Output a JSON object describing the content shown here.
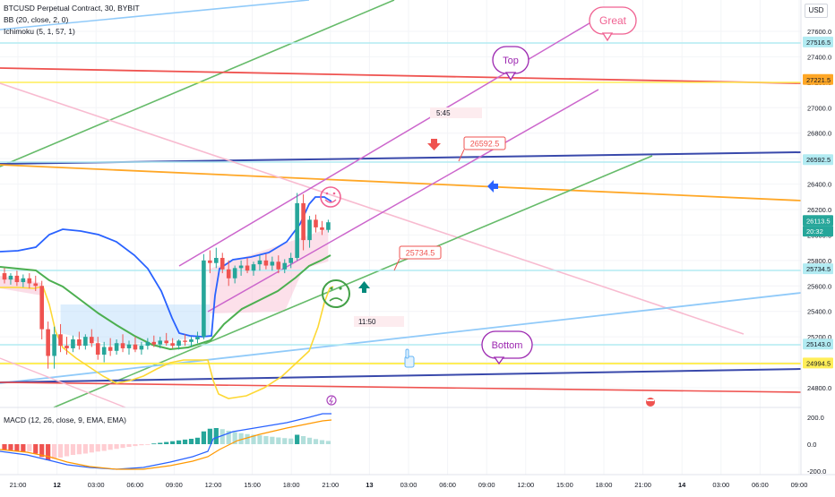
{
  "header": {
    "symbol": "BTCUSD Perpetual Contract, 30, BYBIT",
    "bb": "BB (20, close, 2, 0)",
    "ichimoku": "Ichimoku (5, 1, 57, 1)",
    "macd": "MACD (12, 26, close, 9, EMA, EMA)",
    "currency": "USD"
  },
  "colors": {
    "up": "#26a69a",
    "down": "#ef5350",
    "bb_upper": "#2962ff",
    "bb_middle": "#43a047",
    "bb_lower": "#fdd835",
    "purple": "#cc66cc",
    "green_line": "#66bb6a",
    "red_line": "#ef5350",
    "orange_line": "#ffa726",
    "navy_line": "#3949ab",
    "blue_line": "#90caf9",
    "yellow_line": "#ffee58",
    "pink_line": "#f8bbd0",
    "label_purple": "#9c27b0",
    "label_pink": "#f06292"
  },
  "chart_data": [
    {
      "type": "candlestick",
      "title": "BTCUSD Perpetual Contract, 30, BYBIT",
      "ylim": [
        24650,
        27750
      ],
      "y_ticks": [
        24800,
        25000,
        25200,
        25400,
        25600,
        25800,
        26000,
        26200,
        26400,
        26600,
        26800,
        27000,
        27200,
        27400,
        27600
      ],
      "x_ticks": [
        "21:00",
        "12",
        "03:00",
        "06:00",
        "09:00",
        "12:00",
        "15:00",
        "18:00",
        "21:00",
        "13",
        "03:00",
        "06:00",
        "09:00",
        "12:00",
        "15:00",
        "18:00",
        "21:00",
        "14",
        "03:00",
        "06:00",
        "09:00"
      ],
      "price_labels": [
        {
          "text": "27516.5",
          "value": 27516.5,
          "color": "#b2ebf2"
        },
        {
          "text": "27221.5",
          "value": 27221.5,
          "color": "#ffa726"
        },
        {
          "text": "26592.5",
          "value": 26592.5,
          "color": "#b2ebf2"
        },
        {
          "text": "26113.5",
          "value": 26113.5,
          "color": "#26a69a"
        },
        {
          "text": "20:32",
          "value": 26030,
          "color": "#26a69a"
        },
        {
          "text": "25734.5",
          "value": 25734.5,
          "color": "#b2ebf2"
        },
        {
          "text": "25143.0",
          "value": 25143,
          "color": "#b2ebf2"
        },
        {
          "text": "24994.5",
          "value": 24994.5,
          "color": "#ffee58"
        }
      ],
      "annotations": [
        "Great",
        "Top",
        "Bottom",
        "26592.5",
        "25734.5",
        "5:45",
        "11:50"
      ],
      "candles": [
        {
          "o": 25700,
          "h": 25740,
          "l": 25620,
          "c": 25650
        },
        {
          "o": 25650,
          "h": 25700,
          "l": 25610,
          "c": 25680
        },
        {
          "o": 25680,
          "h": 25720,
          "l": 25600,
          "c": 25630
        },
        {
          "o": 25630,
          "h": 25690,
          "l": 25590,
          "c": 25660
        },
        {
          "o": 25660,
          "h": 25700,
          "l": 25580,
          "c": 25620
        },
        {
          "o": 25620,
          "h": 25680,
          "l": 25560,
          "c": 25600
        },
        {
          "o": 25600,
          "h": 25640,
          "l": 25180,
          "c": 25260
        },
        {
          "o": 25260,
          "h": 25320,
          "l": 24950,
          "c": 25050
        },
        {
          "o": 25050,
          "h": 25280,
          "l": 24950,
          "c": 25220
        },
        {
          "o": 25220,
          "h": 25300,
          "l": 25080,
          "c": 25130
        },
        {
          "o": 25130,
          "h": 25200,
          "l": 25060,
          "c": 25110
        },
        {
          "o": 25110,
          "h": 25210,
          "l": 25080,
          "c": 25180
        },
        {
          "o": 25180,
          "h": 25240,
          "l": 25100,
          "c": 25130
        },
        {
          "o": 25130,
          "h": 25220,
          "l": 25100,
          "c": 25200
        },
        {
          "o": 25200,
          "h": 25260,
          "l": 25120,
          "c": 25150
        },
        {
          "o": 25150,
          "h": 25200,
          "l": 25020,
          "c": 25060
        },
        {
          "o": 25060,
          "h": 25160,
          "l": 25000,
          "c": 25120
        },
        {
          "o": 25120,
          "h": 25190,
          "l": 25050,
          "c": 25090
        },
        {
          "o": 25090,
          "h": 25180,
          "l": 25060,
          "c": 25150
        },
        {
          "o": 25150,
          "h": 25220,
          "l": 25080,
          "c": 25110
        },
        {
          "o": 25110,
          "h": 25170,
          "l": 25060,
          "c": 25140
        },
        {
          "o": 25140,
          "h": 25200,
          "l": 25080,
          "c": 25100
        },
        {
          "o": 25100,
          "h": 25160,
          "l": 25060,
          "c": 25130
        },
        {
          "o": 25130,
          "h": 25190,
          "l": 25100,
          "c": 25160
        },
        {
          "o": 25160,
          "h": 25210,
          "l": 25120,
          "c": 25140
        },
        {
          "o": 25140,
          "h": 25200,
          "l": 25110,
          "c": 25170
        },
        {
          "o": 25170,
          "h": 25230,
          "l": 25130,
          "c": 25150
        },
        {
          "o": 25150,
          "h": 25190,
          "l": 25110,
          "c": 25130
        },
        {
          "o": 25130,
          "h": 25180,
          "l": 25100,
          "c": 25170
        },
        {
          "o": 25170,
          "h": 25220,
          "l": 25130,
          "c": 25160
        },
        {
          "o": 25160,
          "h": 25200,
          "l": 25120,
          "c": 25180
        },
        {
          "o": 25180,
          "h": 25240,
          "l": 25150,
          "c": 25200
        },
        {
          "o": 25200,
          "h": 25850,
          "l": 25180,
          "c": 25800
        },
        {
          "o": 25800,
          "h": 25880,
          "l": 25700,
          "c": 25780
        },
        {
          "o": 25780,
          "h": 25900,
          "l": 25740,
          "c": 25820
        },
        {
          "o": 25820,
          "h": 25860,
          "l": 25700,
          "c": 25730
        },
        {
          "o": 25730,
          "h": 25800,
          "l": 25600,
          "c": 25660
        },
        {
          "o": 25660,
          "h": 25760,
          "l": 25620,
          "c": 25740
        },
        {
          "o": 25740,
          "h": 25800,
          "l": 25680,
          "c": 25760
        },
        {
          "o": 25760,
          "h": 25820,
          "l": 25700,
          "c": 25720
        },
        {
          "o": 25720,
          "h": 25790,
          "l": 25680,
          "c": 25770
        },
        {
          "o": 25770,
          "h": 25840,
          "l": 25720,
          "c": 25800
        },
        {
          "o": 25800,
          "h": 25850,
          "l": 25730,
          "c": 25760
        },
        {
          "o": 25760,
          "h": 25830,
          "l": 25720,
          "c": 25790
        },
        {
          "o": 25790,
          "h": 25840,
          "l": 25700,
          "c": 25730
        },
        {
          "o": 25730,
          "h": 25810,
          "l": 25700,
          "c": 25780
        },
        {
          "o": 25780,
          "h": 25860,
          "l": 25740,
          "c": 25820
        },
        {
          "o": 25820,
          "h": 26330,
          "l": 25800,
          "c": 26250
        },
        {
          "o": 26250,
          "h": 26320,
          "l": 25880,
          "c": 25960
        },
        {
          "o": 25960,
          "h": 26150,
          "l": 25900,
          "c": 26120
        },
        {
          "o": 26120,
          "h": 26160,
          "l": 26020,
          "c": 26060
        },
        {
          "o": 26060,
          "h": 26110,
          "l": 26000,
          "c": 26040
        },
        {
          "o": 26040,
          "h": 26120,
          "l": 26020,
          "c": 26100
        }
      ]
    },
    {
      "type": "bar",
      "title": "MACD (12, 26, close, 9, EMA, EMA)",
      "ylim": [
        -320,
        260
      ],
      "y_ticks": [
        -200,
        0,
        200
      ],
      "histogram": [
        -40,
        -45,
        -50,
        -60,
        -55,
        -70,
        -95,
        -120,
        -110,
        -100,
        -90,
        -80,
        -75,
        -70,
        -62,
        -55,
        -50,
        -42,
        -35,
        -28,
        -20,
        -14,
        -8,
        -2,
        5,
        10,
        16,
        22,
        28,
        34,
        40,
        48,
        95,
        115,
        120,
        112,
        100,
        90,
        82,
        75,
        70,
        66,
        60,
        55,
        50,
        45,
        42,
        70,
        60,
        48,
        38,
        30,
        24
      ]
    }
  ]
}
